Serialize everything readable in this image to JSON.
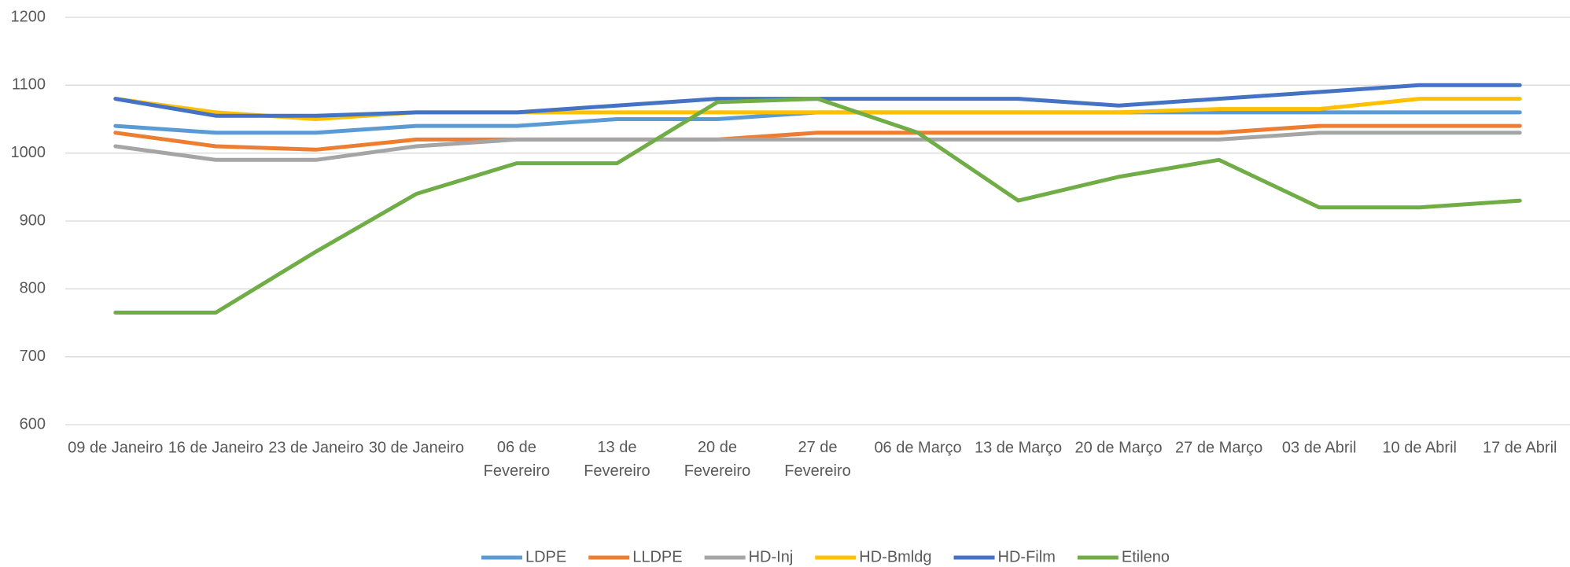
{
  "chart_data": {
    "type": "line",
    "categories": [
      "09 de Janeiro",
      "16 de Janeiro",
      "23 de Janeiro",
      "30 de Janeiro",
      "06 de Fevereiro",
      "13 de Fevereiro",
      "20 de Fevereiro",
      "27 de Fevereiro",
      "06 de Março",
      "13 de Março",
      "20 de Março",
      "27 de Março",
      "03 de Abril",
      "10 de Abril",
      "17 de Abril"
    ],
    "series": [
      {
        "name": "LDPE",
        "color": "#5B9BD5",
        "values": [
          1040,
          1030,
          1030,
          1040,
          1040,
          1050,
          1050,
          1060,
          1060,
          1060,
          1060,
          1060,
          1060,
          1060,
          1060
        ]
      },
      {
        "name": "LLDPE",
        "color": "#ED7D31",
        "values": [
          1030,
          1010,
          1005,
          1020,
          1020,
          1020,
          1020,
          1030,
          1030,
          1030,
          1030,
          1030,
          1040,
          1040,
          1040
        ]
      },
      {
        "name": "HD-Inj",
        "color": "#A5A5A5",
        "values": [
          1010,
          990,
          990,
          1010,
          1020,
          1020,
          1020,
          1020,
          1020,
          1020,
          1020,
          1020,
          1030,
          1030,
          1030
        ]
      },
      {
        "name": "HD-Bmldg",
        "color": "#FFC000",
        "values": [
          1080,
          1060,
          1050,
          1060,
          1060,
          1060,
          1060,
          1060,
          1060,
          1060,
          1060,
          1065,
          1065,
          1080,
          1080
        ]
      },
      {
        "name": "HD-Film",
        "color": "#4472C4",
        "values": [
          1080,
          1055,
          1055,
          1060,
          1060,
          1070,
          1080,
          1080,
          1080,
          1080,
          1070,
          1080,
          1090,
          1100,
          1100
        ]
      },
      {
        "name": "Etileno",
        "color": "#70AD47",
        "values": [
          765,
          765,
          855,
          940,
          985,
          985,
          1075,
          1080,
          1030,
          930,
          965,
          990,
          920,
          920,
          930
        ]
      }
    ],
    "ylim": [
      600,
      1200
    ],
    "yticks": [
      600,
      700,
      800,
      900,
      1000,
      1100,
      1200
    ],
    "grid": true,
    "legend": "bottom"
  }
}
